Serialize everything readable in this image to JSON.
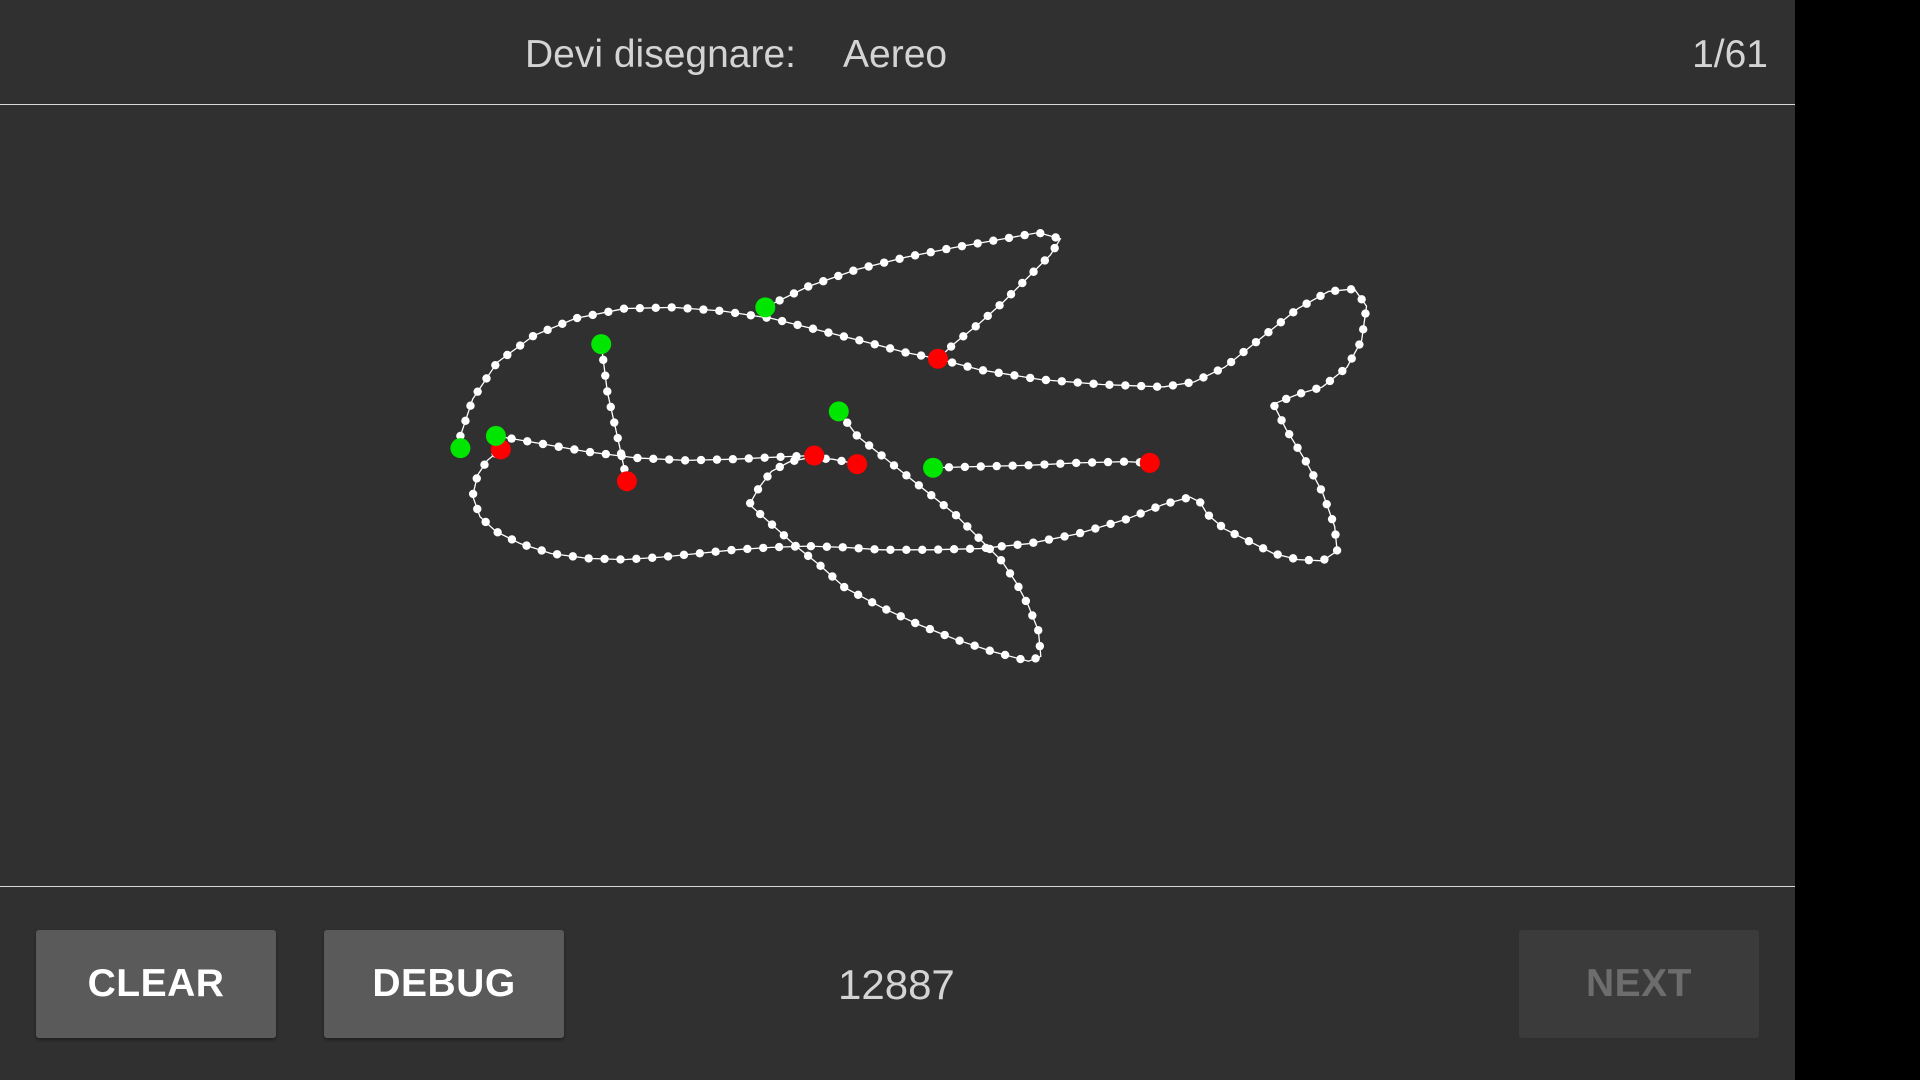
{
  "header": {
    "prompt_label": "Devi disegnare:",
    "prompt_word": "Aereo",
    "counter": "1/61"
  },
  "footer": {
    "clear_label": "CLEAR",
    "debug_label": "DEBUG",
    "score": "12887",
    "next_label": "NEXT"
  },
  "colors": {
    "background": "#303030",
    "stroke": "#ffffff",
    "start_point": "#00e600",
    "end_point": "#ff0000",
    "disabled_text": "#6d6d6d"
  }
}
